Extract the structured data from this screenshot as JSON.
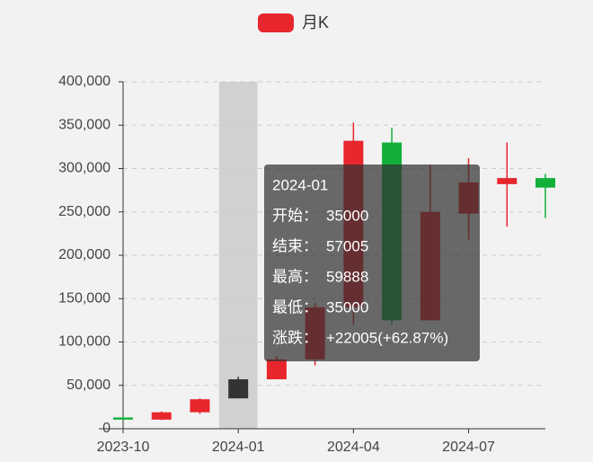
{
  "chart_data": {
    "type": "candlestick",
    "categories": [
      "2023-10",
      null,
      null,
      "2024-01",
      null,
      null,
      "2024-04",
      null,
      null,
      "2024-07",
      null,
      null
    ],
    "series": [
      {
        "name": "月K",
        "color": "#e8262e",
        "down_color": "#12b03b",
        "open": [
          13000,
          10500,
          19000,
          35000,
          57000,
          80000,
          140000,
          330000,
          125000,
          248000,
          282000,
          289000
        ],
        "close": [
          10500,
          19000,
          34000,
          57005,
          80000,
          140000,
          332000,
          125000,
          250000,
          284000,
          289000,
          278000
        ],
        "high": [
          14000,
          20000,
          35000,
          59888,
          84000,
          145000,
          353000,
          347000,
          304000,
          312000,
          330000,
          294000
        ],
        "low": [
          10000,
          10000,
          17000,
          35000,
          57000,
          73000,
          120000,
          120000,
          125000,
          218000,
          233000,
          243000
        ]
      }
    ],
    "ylim": [
      0,
      400000
    ],
    "yticks": [
      0,
      {
        "value": 50000,
        "label": "50,000"
      },
      {
        "value": 100000,
        "label": "100,000"
      },
      {
        "value": 150000,
        "label": "150,000"
      },
      {
        "value": 200000,
        "label": "200,000"
      },
      {
        "value": 250000,
        "label": "250,000"
      },
      {
        "value": 300000,
        "label": "300,000"
      },
      {
        "value": 350000,
        "label": "350,000"
      },
      {
        "value": 400000,
        "label": "400,000"
      }
    ],
    "grid": true,
    "legend_position": "top",
    "tooltip": {
      "title": "2024-01",
      "rows": [
        {
          "label": "开始：",
          "value": "35000"
        },
        {
          "label": "结束：",
          "value": "57005"
        },
        {
          "label": "最高：",
          "value": "59888"
        },
        {
          "label": "最低：",
          "value": "35000"
        },
        {
          "label": "涨跌：",
          "value": "+22005(+62.87%)"
        }
      ]
    }
  }
}
